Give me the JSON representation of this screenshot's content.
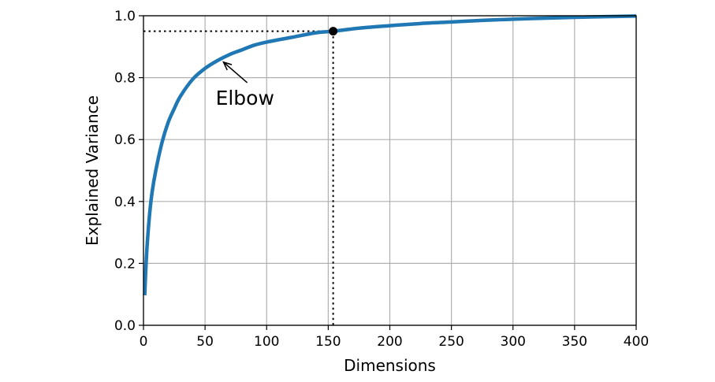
{
  "chart_data": {
    "type": "line",
    "title": "",
    "xlabel": "Dimensions",
    "ylabel": "Explained Variance",
    "xlim": [
      0,
      400
    ],
    "ylim": [
      0.0,
      1.0
    ],
    "xticks": [
      "0",
      "50",
      "100",
      "150",
      "200",
      "250",
      "300",
      "350",
      "400"
    ],
    "yticks": [
      "0.0",
      "0.2",
      "0.4",
      "0.6",
      "0.8",
      "1.0"
    ],
    "grid": true,
    "series_color": "#1f77b4",
    "series": [
      {
        "x": [
          1,
          2,
          3,
          5,
          7,
          10,
          15,
          20,
          25,
          30,
          40,
          50,
          60,
          70,
          80,
          90,
          100,
          120,
          140,
          154,
          175,
          200,
          225,
          250,
          275,
          300,
          325,
          350,
          375,
          400
        ],
        "values": [
          0.097,
          0.19,
          0.26,
          0.36,
          0.43,
          0.5,
          0.59,
          0.655,
          0.7,
          0.74,
          0.795,
          0.83,
          0.855,
          0.875,
          0.89,
          0.905,
          0.915,
          0.93,
          0.945,
          0.95,
          0.96,
          0.968,
          0.975,
          0.98,
          0.985,
          0.989,
          0.992,
          0.995,
          0.997,
          0.999
        ]
      }
    ],
    "marked_point": {
      "x": 154,
      "y": 0.95
    },
    "annotation": {
      "text": "Elbow",
      "x": 65,
      "y": 0.85
    }
  }
}
